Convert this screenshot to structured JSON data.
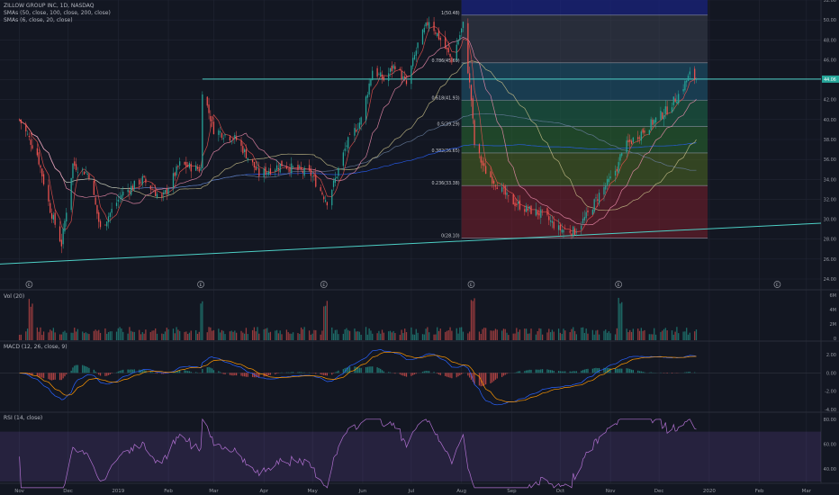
{
  "header": {
    "symbol": "ZILLOW GROUP INC, 1D, NASDAQ",
    "sma_a": "SMAs (50, close, 100, close, 200, close)",
    "sma_b": "SMAs (6, close, 20, close)"
  },
  "panes": {
    "vol": "Vol (20)",
    "macd": "MACD (12, 26, close, 9)",
    "rsi": "RSI (14, close)"
  },
  "colors": {
    "up": "#26a69a",
    "down": "#ef5350",
    "bg": "#131722",
    "grid": "#222634",
    "sma6": "#ef5350",
    "sma20": "#f48fb1",
    "sma50": "#c9c08a",
    "sma100": "#6a7fa0",
    "sma200": "#2962ff",
    "trendline": "#4dd0c6",
    "macd": "#2962ff",
    "signal": "#ff9800",
    "rsi": "#b070d0"
  },
  "chart_data": {
    "type": "candlestick",
    "x_axis": [
      "Nov",
      "Dec",
      "2019",
      "Feb",
      "Mar",
      "Apr",
      "May",
      "Jun",
      "Jul",
      "Aug",
      "Sep",
      "Oct",
      "Nov",
      "Dec",
      "2020",
      "Feb",
      "Mar"
    ],
    "price_axis": [
      "52.00",
      "50.00",
      "48.00",
      "46.00",
      "44.00",
      "42.00",
      "40.00",
      "38.00",
      "36.00",
      "34.00",
      "32.00",
      "30.00",
      "28.00",
      "26.00",
      "24.00"
    ],
    "ylim": [
      24,
      52
    ],
    "last_price": "44.06",
    "earnings_markers": [
      "E",
      "E",
      "E",
      "E",
      "E",
      "E"
    ],
    "fib_levels": [
      {
        "label": "1(50.48)",
        "value": 50.48
      },
      {
        "label": "0.786(45.69)",
        "value": 45.69
      },
      {
        "label": "0.618(41.93)",
        "value": 41.93
      },
      {
        "label": "0.5(39.29)",
        "value": 39.29
      },
      {
        "label": "0.382(36.65)",
        "value": 36.65
      },
      {
        "label": "0.236(33.38)",
        "value": 33.38
      },
      {
        "label": "0(28.10)",
        "value": 28.1
      }
    ],
    "fib_colors": [
      "#3a3f4f",
      "#1f5b77",
      "#1e6b4a",
      "#2a6b30",
      "#4e6a22",
      "#7a1f2c"
    ],
    "key_closes": [
      {
        "date": "2018-11-01",
        "close": 40.0
      },
      {
        "date": "2018-11-12",
        "close": 36.5
      },
      {
        "date": "2018-11-20",
        "close": 31.0
      },
      {
        "date": "2018-11-27",
        "close": 27.5
      },
      {
        "date": "2018-12-04",
        "close": 35.5
      },
      {
        "date": "2018-12-14",
        "close": 34.5
      },
      {
        "date": "2018-12-21",
        "close": 29.0
      },
      {
        "date": "2019-01-03",
        "close": 32.5
      },
      {
        "date": "2019-01-16",
        "close": 34.0
      },
      {
        "date": "2019-01-28",
        "close": 32.0
      },
      {
        "date": "2019-02-08",
        "close": 35.5
      },
      {
        "date": "2019-02-21",
        "close": 35.0
      },
      {
        "date": "2019-02-22",
        "close": 43.0
      },
      {
        "date": "2019-03-01",
        "close": 39.0
      },
      {
        "date": "2019-03-15",
        "close": 38.0
      },
      {
        "date": "2019-03-29",
        "close": 34.5
      },
      {
        "date": "2019-04-12",
        "close": 35.5
      },
      {
        "date": "2019-04-30",
        "close": 34.5
      },
      {
        "date": "2019-05-10",
        "close": 31.8
      },
      {
        "date": "2019-05-15",
        "close": 34.0
      },
      {
        "date": "2019-05-22",
        "close": 37.5
      },
      {
        "date": "2019-05-31",
        "close": 40.0
      },
      {
        "date": "2019-06-07",
        "close": 45.0
      },
      {
        "date": "2019-06-14",
        "close": 44.0
      },
      {
        "date": "2019-06-21",
        "close": 45.5
      },
      {
        "date": "2019-06-28",
        "close": 43.5
      },
      {
        "date": "2019-07-05",
        "close": 47.5
      },
      {
        "date": "2019-07-12",
        "close": 50.0
      },
      {
        "date": "2019-07-19",
        "close": 48.0
      },
      {
        "date": "2019-07-26",
        "close": 46.0
      },
      {
        "date": "2019-08-02",
        "close": 49.5
      },
      {
        "date": "2019-08-07",
        "close": 42.0
      },
      {
        "date": "2019-08-09",
        "close": 37.5
      },
      {
        "date": "2019-08-15",
        "close": 35.0
      },
      {
        "date": "2019-08-23",
        "close": 33.5
      },
      {
        "date": "2019-08-30",
        "close": 32.0
      },
      {
        "date": "2019-09-10",
        "close": 31.0
      },
      {
        "date": "2019-09-20",
        "close": 30.5
      },
      {
        "date": "2019-09-30",
        "close": 29.0
      },
      {
        "date": "2019-10-10",
        "close": 28.8
      },
      {
        "date": "2019-10-18",
        "close": 30.5
      },
      {
        "date": "2019-10-25",
        "close": 32.5
      },
      {
        "date": "2019-11-01",
        "close": 34.0
      },
      {
        "date": "2019-11-06",
        "close": 35.5
      },
      {
        "date": "2019-11-08",
        "close": 37.0
      },
      {
        "date": "2019-11-15",
        "close": 38.0
      },
      {
        "date": "2019-11-22",
        "close": 39.0
      },
      {
        "date": "2019-11-29",
        "close": 40.0
      },
      {
        "date": "2019-12-06",
        "close": 41.0
      },
      {
        "date": "2019-12-13",
        "close": 42.5
      },
      {
        "date": "2019-12-20",
        "close": 44.5
      },
      {
        "date": "2019-12-24",
        "close": 44.1
      }
    ],
    "volume_axis": [
      "6M",
      "4M",
      "2M",
      "0"
    ],
    "macd_axis": [
      "2.00",
      "0.00",
      "-2.00",
      "-4.00"
    ],
    "rsi_axis": [
      "80.00",
      "60.00",
      "40.00"
    ]
  }
}
